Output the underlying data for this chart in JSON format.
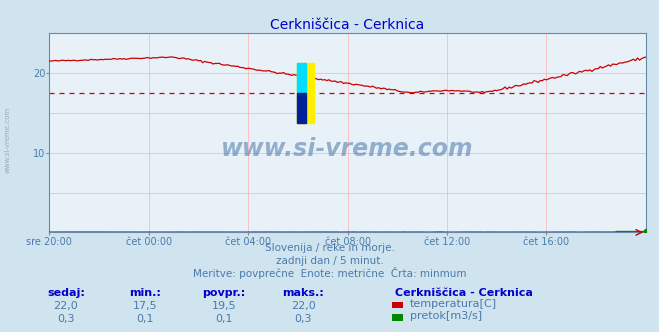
{
  "title": "Cerkniščica - Cerknica",
  "title_color": "#0000cc",
  "bg_color": "#d0e4f0",
  "plot_bg_color": "#e8f0f8",
  "grid_color": "#ffb0b0",
  "x_labels": [
    "sre 20:00",
    "čet 00:00",
    "čet 04:00",
    "čet 08:00",
    "čet 12:00",
    "čet 16:00"
  ],
  "n_points": 289,
  "ylim_temp": [
    0,
    25
  ],
  "y_ticks_temp": [
    10,
    20
  ],
  "temp_color": "#cc0000",
  "flow_color": "#008800",
  "avg_value": 17.5,
  "watermark": "www.si-vreme.com",
  "watermark_color": "#4a7aaa",
  "subtitle1": "Slovenija / reke in morje.",
  "subtitle2": "zadnji dan / 5 minut.",
  "subtitle3": "Meritve: povprečne  Enote: metrične  Črta: minmum",
  "subtitle_color": "#4a7aaa",
  "label_sedaj": "sedaj:",
  "label_min": "min.:",
  "label_povpr": "povpr.:",
  "label_maks": "maks.:",
  "val_sedaj_temp": "22,0",
  "val_min_temp": "17,5",
  "val_povpr_temp": "19,5",
  "val_maks_temp": "22,0",
  "val_sedaj_flow": "0,3",
  "val_min_flow": "0,1",
  "val_povpr_flow": "0,1",
  "val_maks_flow": "0,3",
  "legend_title": "Cerkniščica - Cerknica",
  "legend_temp": "temperatura[C]",
  "legend_flow": "pretok[m3/s]",
  "table_color": "#0000cc",
  "table_value_color": "#4a7aaa",
  "left_label": "www.si-vreme.com"
}
